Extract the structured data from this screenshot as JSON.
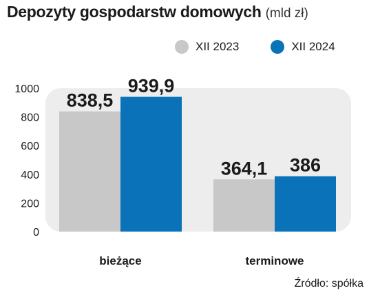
{
  "title": "Depozyty gospodarstw domowych",
  "title_unit": "(mld zł)",
  "source": "Źródło: spółka",
  "colors": {
    "series_2023": "#c8c8c8",
    "series_2024": "#0a72b8",
    "plot_background": "#ededed"
  },
  "legend": [
    {
      "name": "XII 2023",
      "color": "#c8c8c8"
    },
    {
      "name": "XII 2024",
      "color": "#0a72b8"
    }
  ],
  "chart_data": {
    "type": "bar",
    "categories": [
      "bieżące",
      "terminowe"
    ],
    "series": [
      {
        "name": "XII 2023",
        "values": [
          838.5,
          364.1
        ],
        "labels": [
          "838,5",
          "364,1"
        ]
      },
      {
        "name": "XII 2024",
        "values": [
          939.9,
          386
        ],
        "labels": [
          "939,9",
          "386"
        ]
      }
    ],
    "y_ticks": [
      "0",
      "200",
      "400",
      "600",
      "800",
      "1000"
    ],
    "ylim": [
      0,
      1000
    ],
    "grid": false,
    "legend_position": "top-right"
  }
}
